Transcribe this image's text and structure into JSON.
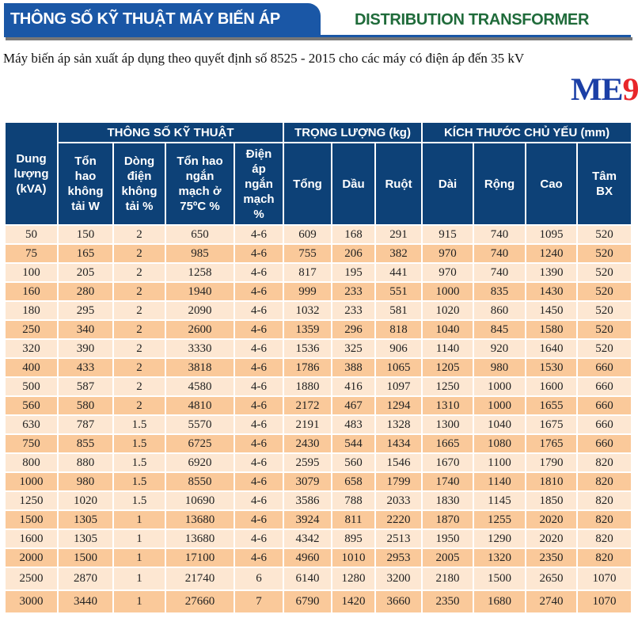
{
  "header": {
    "title_vi": "THÔNG SỐ KỸ THUẬT MÁY BIẾN ÁP",
    "title_en": "DISTRIBUTION TRANSFORMER",
    "subtitle": "Máy biến áp sản xuất áp dụng theo quyết định số 8525 - 2015 cho các máy có điện áp đến 35 kV"
  },
  "logo": {
    "text": "ME9",
    "me": "ME",
    "nine": "9"
  },
  "colors": {
    "header_blue": "#0d4177",
    "banner_blue": "#1a57a6",
    "title_green": "#1f6b3a",
    "row_light": "#fde7d2",
    "row_dark": "#fac99a",
    "logo_blue": "#1b3fa6",
    "logo_red": "#e8262a"
  },
  "table": {
    "capacity_header": "Dung lượng (kVA)",
    "groups": [
      "THÔNG SỐ KỸ THUẬT",
      "TRỌNG LƯỢNG (kg)",
      "KÍCH THƯỚC CHỦ YẾU (mm)"
    ],
    "columns": [
      "Tổn hao không tải W",
      "Dòng điện không tải %",
      "Tổn hao ngắn mạch ở 75ºC %",
      "Điện áp ngắn mạch %",
      "Tổng",
      "Dầu",
      "Ruột",
      "Dài",
      "Rộng",
      "Cao",
      "Tâm BX"
    ],
    "rows": [
      [
        "50",
        "150",
        "2",
        "650",
        "4-6",
        "609",
        "168",
        "291",
        "915",
        "740",
        "1095",
        "520"
      ],
      [
        "75",
        "165",
        "2",
        "985",
        "4-6",
        "755",
        "206",
        "382",
        "970",
        "740",
        "1240",
        "520"
      ],
      [
        "100",
        "205",
        "2",
        "1258",
        "4-6",
        "817",
        "195",
        "441",
        "970",
        "740",
        "1390",
        "520"
      ],
      [
        "160",
        "280",
        "2",
        "1940",
        "4-6",
        "999",
        "233",
        "551",
        "1000",
        "835",
        "1430",
        "520"
      ],
      [
        "180",
        "295",
        "2",
        "2090",
        "4-6",
        "1032",
        "233",
        "581",
        "1020",
        "860",
        "1450",
        "520"
      ],
      [
        "250",
        "340",
        "2",
        "2600",
        "4-6",
        "1359",
        "296",
        "818",
        "1040",
        "845",
        "1580",
        "520"
      ],
      [
        "320",
        "390",
        "2",
        "3330",
        "4-6",
        "1536",
        "325",
        "906",
        "1140",
        "920",
        "1640",
        "520"
      ],
      [
        "400",
        "433",
        "2",
        "3818",
        "4-6",
        "1786",
        "388",
        "1065",
        "1205",
        "980",
        "1530",
        "660"
      ],
      [
        "500",
        "587",
        "2",
        "4580",
        "4-6",
        "1880",
        "416",
        "1097",
        "1250",
        "1000",
        "1600",
        "660"
      ],
      [
        "560",
        "580",
        "2",
        "4810",
        "4-6",
        "2172",
        "467",
        "1294",
        "1310",
        "1000",
        "1655",
        "660"
      ],
      [
        "630",
        "787",
        "1.5",
        "5570",
        "4-6",
        "2191",
        "483",
        "1328",
        "1300",
        "1040",
        "1675",
        "660"
      ],
      [
        "750",
        "855",
        "1.5",
        "6725",
        "4-6",
        "2430",
        "544",
        "1434",
        "1665",
        "1080",
        "1765",
        "660"
      ],
      [
        "800",
        "880",
        "1.5",
        "6920",
        "4-6",
        "2595",
        "560",
        "1546",
        "1670",
        "1100",
        "1790",
        "820"
      ],
      [
        "1000",
        "980",
        "1.5",
        "8550",
        "4-6",
        "3079",
        "658",
        "1799",
        "1740",
        "1140",
        "1810",
        "820"
      ],
      [
        "1250",
        "1020",
        "1.5",
        "10690",
        "4-6",
        "3586",
        "788",
        "2033",
        "1830",
        "1145",
        "1850",
        "820"
      ],
      [
        "1500",
        "1305",
        "1",
        "13680",
        "4-6",
        "3924",
        "811",
        "2220",
        "1870",
        "1255",
        "2020",
        "820"
      ],
      [
        "1600",
        "1305",
        "1",
        "13680",
        "4-6",
        "4342",
        "895",
        "2513",
        "1950",
        "1290",
        "2020",
        "820"
      ],
      [
        "2000",
        "1500",
        "1",
        "17100",
        "4-6",
        "4960",
        "1010",
        "2953",
        "2005",
        "1320",
        "2350",
        "820"
      ],
      [
        "2500",
        "2870",
        "1",
        "21740",
        "6",
        "6140",
        "1280",
        "3200",
        "2180",
        "1500",
        "2650",
        "1070"
      ],
      [
        "3000",
        "3440",
        "1",
        "27660",
        "7",
        "6790",
        "1420",
        "3660",
        "2350",
        "1680",
        "2740",
        "1070"
      ]
    ]
  }
}
